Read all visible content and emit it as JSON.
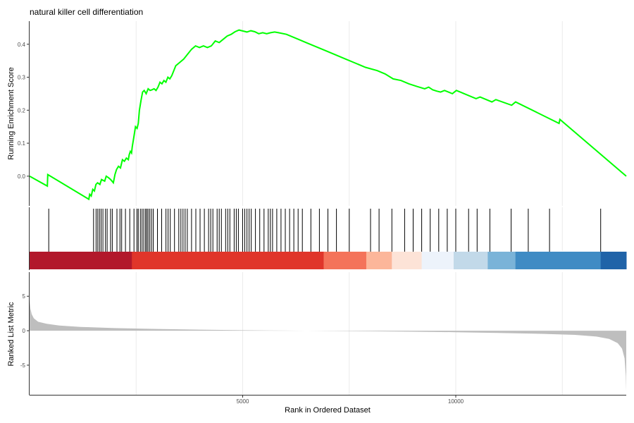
{
  "chart_data": {
    "type": "line",
    "title": "natural killer cell differentiation",
    "xlabel": "Rank in Ordered Dataset",
    "x_max": 14000,
    "x_ticks": [
      5000,
      10000
    ],
    "colors": {
      "line": "#00ff00",
      "hit": "#000000",
      "metric_fill": "#bebebe",
      "grid": "#ebebeb",
      "axis": "#333333"
    },
    "running_score": {
      "ylabel": "Running Enrichment Score",
      "y_ticks": [
        0.0,
        0.1,
        0.2,
        0.3,
        0.4
      ],
      "ylim": [
        -0.09,
        0.47
      ],
      "points": [
        [
          0,
          0.0
        ],
        [
          450,
          -0.03
        ],
        [
          460,
          0.005
        ],
        [
          1500,
          -0.07
        ],
        [
          1520,
          -0.055
        ],
        [
          1560,
          -0.06
        ],
        [
          1600,
          -0.04
        ],
        [
          1640,
          -0.045
        ],
        [
          1680,
          -0.025
        ],
        [
          1720,
          -0.02
        ],
        [
          1780,
          -0.025
        ],
        [
          1820,
          -0.01
        ],
        [
          1900,
          -0.015
        ],
        [
          1940,
          -0.0
        ],
        [
          2000,
          -0.005
        ],
        [
          2050,
          -0.01
        ],
        [
          2120,
          -0.02
        ],
        [
          2160,
          0.005
        ],
        [
          2200,
          0.02
        ],
        [
          2250,
          0.03
        ],
        [
          2300,
          0.025
        ],
        [
          2350,
          0.05
        ],
        [
          2400,
          0.045
        ],
        [
          2450,
          0.055
        ],
        [
          2500,
          0.05
        ],
        [
          2520,
          0.065
        ],
        [
          2550,
          0.075
        ],
        [
          2580,
          0.07
        ],
        [
          2600,
          0.09
        ],
        [
          2640,
          0.12
        ],
        [
          2680,
          0.15
        ],
        [
          2720,
          0.145
        ],
        [
          2750,
          0.16
        ],
        [
          2780,
          0.2
        ],
        [
          2820,
          0.23
        ],
        [
          2860,
          0.255
        ],
        [
          2900,
          0.26
        ],
        [
          2950,
          0.25
        ],
        [
          3000,
          0.265
        ],
        [
          3050,
          0.26
        ],
        [
          3100,
          0.262
        ],
        [
          3150,
          0.265
        ],
        [
          3200,
          0.26
        ],
        [
          3250,
          0.27
        ],
        [
          3300,
          0.285
        ],
        [
          3350,
          0.28
        ],
        [
          3400,
          0.29
        ],
        [
          3450,
          0.285
        ],
        [
          3500,
          0.3
        ],
        [
          3550,
          0.295
        ],
        [
          3600,
          0.305
        ],
        [
          3650,
          0.32
        ],
        [
          3700,
          0.335
        ],
        [
          3800,
          0.345
        ],
        [
          3900,
          0.355
        ],
        [
          4000,
          0.37
        ],
        [
          4100,
          0.385
        ],
        [
          4200,
          0.395
        ],
        [
          4300,
          0.39
        ],
        [
          4400,
          0.395
        ],
        [
          4500,
          0.39
        ],
        [
          4600,
          0.395
        ],
        [
          4700,
          0.41
        ],
        [
          4800,
          0.405
        ],
        [
          4900,
          0.415
        ],
        [
          5000,
          0.425
        ],
        [
          5100,
          0.43
        ],
        [
          5200,
          0.438
        ],
        [
          5300,
          0.443
        ],
        [
          5400,
          0.44
        ],
        [
          5500,
          0.437
        ],
        [
          5600,
          0.441
        ],
        [
          5700,
          0.438
        ],
        [
          5800,
          0.432
        ],
        [
          5900,
          0.435
        ],
        [
          6000,
          0.432
        ],
        [
          6100,
          0.435
        ],
        [
          6200,
          0.437
        ],
        [
          6300,
          0.435
        ],
        [
          6500,
          0.43
        ],
        [
          6800,
          0.415
        ],
        [
          7000,
          0.405
        ],
        [
          7500,
          0.38
        ],
        [
          8000,
          0.355
        ],
        [
          8200,
          0.345
        ],
        [
          8500,
          0.33
        ],
        [
          8800,
          0.32
        ],
        [
          9000,
          0.31
        ],
        [
          9200,
          0.295
        ],
        [
          9400,
          0.29
        ],
        [
          9600,
          0.28
        ],
        [
          9800,
          0.272
        ],
        [
          10000,
          0.265
        ],
        [
          10100,
          0.27
        ],
        [
          10200,
          0.262
        ],
        [
          10300,
          0.258
        ],
        [
          10400,
          0.255
        ],
        [
          10500,
          0.26
        ],
        [
          10600,
          0.255
        ],
        [
          10700,
          0.25
        ],
        [
          10800,
          0.26
        ],
        [
          10900,
          0.255
        ],
        [
          11000,
          0.25
        ],
        [
          11300,
          0.235
        ],
        [
          11400,
          0.24
        ],
        [
          11700,
          0.225
        ],
        [
          11800,
          0.232
        ],
        [
          12200,
          0.215
        ],
        [
          12300,
          0.225
        ],
        [
          13400,
          0.16
        ],
        [
          13420,
          0.172
        ],
        [
          15100,
          0.0
        ]
      ],
      "x_scale_max": 15100
    },
    "hits": {
      "ranks": [
        450,
        1500,
        1560,
        1600,
        1640,
        1680,
        1720,
        1780,
        1820,
        1900,
        1940,
        2050,
        2120,
        2160,
        2250,
        2350,
        2450,
        2520,
        2550,
        2600,
        2640,
        2680,
        2720,
        2750,
        2780,
        2820,
        2860,
        2900,
        3000,
        3100,
        3200,
        3250,
        3300,
        3400,
        3500,
        3550,
        3600,
        3650,
        3700,
        3800,
        3900,
        4000,
        4100,
        4200,
        4250,
        4300,
        4400,
        4450,
        4500,
        4600,
        4650,
        4700,
        4800,
        4850,
        4900,
        5000,
        5050,
        5100,
        5150,
        5200,
        5300,
        5400,
        5500,
        5600,
        5650,
        5700,
        5800,
        5900,
        6000,
        6100,
        6200,
        6300,
        6400,
        6600,
        6800,
        7000,
        7200,
        7500,
        8000,
        8200,
        8500,
        8800,
        9000,
        9200,
        9400,
        9600,
        9800,
        10000,
        10300,
        10500,
        10800,
        11300,
        11700,
        12200,
        13400
      ]
    },
    "rank_colors": [
      {
        "from": 0,
        "to": 2400,
        "color": "#b2182b"
      },
      {
        "from": 2400,
        "to": 6900,
        "color": "#e0352a"
      },
      {
        "from": 6900,
        "to": 7900,
        "color": "#f4735a"
      },
      {
        "from": 7900,
        "to": 8500,
        "color": "#fcb69a"
      },
      {
        "from": 8500,
        "to": 9200,
        "color": "#fde3d7"
      },
      {
        "from": 9200,
        "to": 9950,
        "color": "#edf3fb"
      },
      {
        "from": 9950,
        "to": 10750,
        "color": "#c2d9e9"
      },
      {
        "from": 10750,
        "to": 11400,
        "color": "#7ab3d8"
      },
      {
        "from": 11400,
        "to": 13400,
        "color": "#3f8bc4"
      },
      {
        "from": 13400,
        "to": 14000,
        "color": "#2063a8"
      }
    ],
    "ranked_metric": {
      "ylabel": "Ranked List Metric",
      "y_ticks": [
        5,
        0,
        -5
      ],
      "ylim": [
        -9.3,
        8.5
      ],
      "points": [
        [
          0,
          4.5
        ],
        [
          20,
          3.2
        ],
        [
          50,
          2.4
        ],
        [
          100,
          1.8
        ],
        [
          200,
          1.3
        ],
        [
          400,
          1.0
        ],
        [
          700,
          0.75
        ],
        [
          1200,
          0.55
        ],
        [
          2000,
          0.38
        ],
        [
          3000,
          0.25
        ],
        [
          4000,
          0.15
        ],
        [
          5000,
          0.07
        ],
        [
          6000,
          0.02
        ],
        [
          7000,
          -0.03
        ],
        [
          8000,
          -0.08
        ],
        [
          9000,
          -0.14
        ],
        [
          10000,
          -0.22
        ],
        [
          11000,
          -0.32
        ],
        [
          12000,
          -0.45
        ],
        [
          12800,
          -0.6
        ],
        [
          13300,
          -0.85
        ],
        [
          13600,
          -1.2
        ],
        [
          13800,
          -1.8
        ],
        [
          13900,
          -2.6
        ],
        [
          13960,
          -4.0
        ],
        [
          13990,
          -6.5
        ],
        [
          14000,
          -8.8
        ]
      ]
    }
  }
}
